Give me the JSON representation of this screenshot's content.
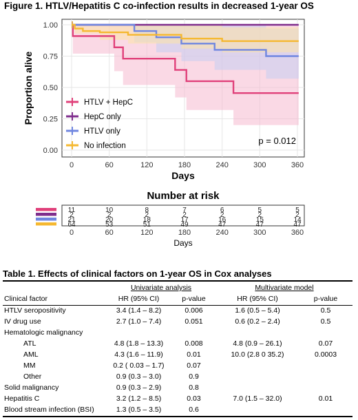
{
  "figure_title": "Figure 1. HTLV/Hepatitis C co-infection results in decreased 1-year OS",
  "chart_data": {
    "type": "line",
    "subtype": "kaplan-meier",
    "ylabel": "Proportion alive",
    "xlabel": "Days",
    "x_ticks": [
      0,
      60,
      120,
      180,
      240,
      300,
      360
    ],
    "y_ticks": [
      "0.00",
      "0.25",
      "0.50",
      "0.75",
      "1.00"
    ],
    "xlim": [
      0,
      360
    ],
    "ylim": [
      0,
      1
    ],
    "grid": true,
    "legend_position": "bottom-left",
    "annotation": "p = 0.012",
    "series": [
      {
        "name": "HTLV + HepC",
        "color": "#e0407a",
        "band_color": "#f6b9cf",
        "steps": [
          [
            0,
            1.0
          ],
          [
            2,
            0.91
          ],
          [
            60,
            0.91
          ],
          [
            68,
            0.82
          ],
          [
            82,
            0.73
          ],
          [
            110,
            0.73
          ],
          [
            165,
            0.64
          ],
          [
            183,
            0.55
          ],
          [
            258,
            0.455
          ],
          [
            362,
            0.455
          ]
        ],
        "lower": [
          [
            0,
            1.0
          ],
          [
            2,
            0.77
          ],
          [
            60,
            0.77
          ],
          [
            68,
            0.63
          ],
          [
            82,
            0.52
          ],
          [
            165,
            0.42
          ],
          [
            183,
            0.32
          ],
          [
            258,
            0.2
          ],
          [
            362,
            0.2
          ]
        ],
        "upper": [
          [
            0,
            1.0
          ],
          [
            362,
            1.0
          ]
        ]
      },
      {
        "name": "HepC only",
        "color": "#7e2c8c",
        "band_color": "#d9b4dc",
        "steps": [
          [
            0,
            1.0
          ],
          [
            362,
            1.0
          ]
        ],
        "lower": [
          [
            0,
            1.0
          ],
          [
            362,
            1.0
          ]
        ],
        "upper": [
          [
            0,
            1.0
          ],
          [
            362,
            1.0
          ]
        ]
      },
      {
        "name": "HTLV only",
        "color": "#6f86e0",
        "band_color": "#c5cdf2",
        "steps": [
          [
            0,
            1.0
          ],
          [
            100,
            0.95
          ],
          [
            135,
            0.9
          ],
          [
            175,
            0.85
          ],
          [
            228,
            0.8
          ],
          [
            290,
            0.8
          ],
          [
            310,
            0.75
          ],
          [
            362,
            0.75
          ]
        ],
        "lower": [
          [
            0,
            1.0
          ],
          [
            100,
            0.86
          ],
          [
            135,
            0.78
          ],
          [
            175,
            0.71
          ],
          [
            228,
            0.64
          ],
          [
            310,
            0.57
          ],
          [
            362,
            0.57
          ]
        ],
        "upper": [
          [
            0,
            1.0
          ],
          [
            228,
            1.0
          ],
          [
            310,
            0.97
          ],
          [
            362,
            0.97
          ]
        ]
      },
      {
        "name": "No infection",
        "color": "#f5b830",
        "band_color": "#fbe3a8",
        "steps": [
          [
            0,
            1.0
          ],
          [
            5,
            0.97
          ],
          [
            18,
            0.95
          ],
          [
            45,
            0.94
          ],
          [
            90,
            0.92
          ],
          [
            150,
            0.92
          ],
          [
            175,
            0.89
          ],
          [
            240,
            0.87
          ],
          [
            362,
            0.87
          ]
        ],
        "lower": [
          [
            0,
            1.0
          ],
          [
            5,
            0.93
          ],
          [
            45,
            0.88
          ],
          [
            90,
            0.85
          ],
          [
            175,
            0.81
          ],
          [
            240,
            0.78
          ],
          [
            362,
            0.78
          ]
        ],
        "upper": [
          [
            0,
            1.0
          ],
          [
            240,
            0.98
          ],
          [
            362,
            0.98
          ]
        ]
      }
    ],
    "risk_table": {
      "title": "Number at risk",
      "times": [
        0,
        60,
        120,
        180,
        240,
        300,
        360
      ],
      "rows": [
        {
          "color": "#e0407a",
          "values": [
            "11",
            "10",
            "8",
            "7",
            "6",
            "5",
            "5"
          ]
        },
        {
          "color": "#7e2c8c",
          "values": [
            "2",
            "2",
            "2",
            "2",
            "2",
            "2",
            "2"
          ]
        },
        {
          "color": "#6f86e0",
          "values": [
            "21",
            "20",
            "18",
            "17",
            "16",
            "15",
            "14"
          ]
        },
        {
          "color": "#f5b830",
          "values": [
            "64",
            "53",
            "51",
            "49",
            "47",
            "47",
            "47"
          ]
        }
      ],
      "xlabel": "Days"
    }
  },
  "table": {
    "title": "Table 1. Effects of clinical factors on 1-year OS in Cox analyses",
    "univariate_header": "Univariate analysis",
    "multivariate_header": "Multivariate model",
    "col_factor": "Clinical factor",
    "col_hr": "HR (95% CI)",
    "col_p": "p-value",
    "rows": [
      {
        "factor": "HTLV seropositivity",
        "uhr": "3.4 (1.4 – 8.2)",
        "up": "0.006",
        "mhr": "1.6 (0.5 – 5.4)",
        "mp": "0.5"
      },
      {
        "factor": "IV drug use",
        "uhr": "2.7 (1.0 – 7.4)",
        "up": "0.051",
        "mhr": "0.6 (0.2 – 2.4)",
        "mp": "0.5"
      },
      {
        "factor": "Hematologic malignancy",
        "uhr": "",
        "up": "",
        "mhr": "",
        "mp": ""
      },
      {
        "factor": "ATL",
        "uhr": "4.8 (1.8 – 13.3)",
        "up": "0.008",
        "mhr": "4.8 (0.9 – 26.1)",
        "mp": "0.07"
      },
      {
        "factor": "AML",
        "uhr": "4.3 (1.6 – 11.9)",
        "up": "0.01",
        "mhr": "10.0 (2.8 0 35.2)",
        "mp": "0.0003"
      },
      {
        "factor": "MM",
        "uhr": "0.2 ( 0.03 – 1.7)",
        "up": "0.07",
        "mhr": "",
        "mp": ""
      },
      {
        "factor": "Other",
        "uhr": "0.9 (0.3 – 3.0)",
        "up": "0.9",
        "mhr": "",
        "mp": ""
      },
      {
        "factor": "Solid malignancy",
        "uhr": "0.9 (0.3 – 2.9)",
        "up": "0.8",
        "mhr": "",
        "mp": ""
      },
      {
        "factor": "Hepatitis C",
        "uhr": "3.2 (1.2 – 8.5)",
        "up": "0.03",
        "mhr": "7.0 (1.5 – 32.0)",
        "mp": "0.01"
      },
      {
        "factor": "Blood stream infection (BSI)",
        "uhr": "1.3 (0.5 – 3.5)",
        "up": "0.6",
        "mhr": "",
        "mp": ""
      }
    ]
  }
}
